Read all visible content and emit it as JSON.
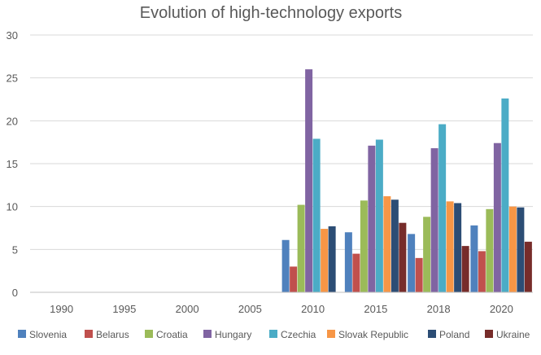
{
  "chart_data": {
    "type": "bar",
    "title": "Evolution of high-technology exports",
    "xlabel": "",
    "ylabel": "",
    "categories": [
      "1990",
      "1995",
      "2000",
      "2005",
      "2010",
      "2015",
      "2018",
      "2020"
    ],
    "ylim": [
      0,
      30
    ],
    "yticks": [
      0,
      5,
      10,
      15,
      20,
      25,
      30
    ],
    "grid": true,
    "legend_position": "bottom",
    "series": [
      {
        "name": "Slovenia",
        "color": "#4F81BD",
        "values": [
          null,
          null,
          null,
          null,
          6.1,
          7.0,
          6.8,
          7.8
        ]
      },
      {
        "name": "Belarus",
        "color": "#C0504D",
        "values": [
          null,
          null,
          null,
          null,
          3.0,
          4.5,
          4.0,
          4.8
        ]
      },
      {
        "name": "Croatia",
        "color": "#9BBB59",
        "values": [
          null,
          null,
          null,
          null,
          10.2,
          10.7,
          8.8,
          9.7
        ]
      },
      {
        "name": "Hungary",
        "color": "#8064A2",
        "values": [
          null,
          null,
          null,
          null,
          26.0,
          17.1,
          16.8,
          17.4
        ]
      },
      {
        "name": "Czechia",
        "color": "#4BACC6",
        "values": [
          null,
          null,
          null,
          null,
          17.9,
          17.8,
          19.6,
          22.6
        ]
      },
      {
        "name": "Slovak Republic",
        "color": "#F79646",
        "values": [
          null,
          null,
          null,
          null,
          7.4,
          11.2,
          10.6,
          10.0
        ]
      },
      {
        "name": "Poland",
        "color": "#2C4D75",
        "values": [
          null,
          null,
          null,
          null,
          7.7,
          10.8,
          10.4,
          9.9
        ]
      },
      {
        "name": "Ukraine",
        "color": "#772C2A",
        "values": [
          null,
          null,
          null,
          null,
          null,
          8.1,
          5.4,
          5.9
        ]
      }
    ]
  }
}
